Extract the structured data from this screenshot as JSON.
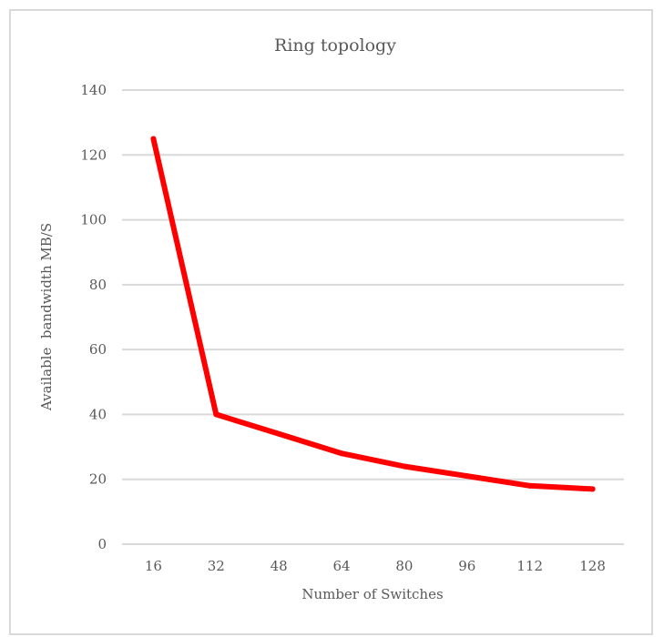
{
  "chart_data": {
    "type": "line",
    "title": "Ring topology",
    "xlabel": "Number of Switches",
    "ylabel": "Available  bandwidth MB/S",
    "categories": [
      "16",
      "32",
      "48",
      "64",
      "80",
      "96",
      "112",
      "128"
    ],
    "series": [
      {
        "values": [
          125,
          40,
          34,
          28,
          24,
          21,
          18,
          17
        ],
        "color": "#ff0000"
      }
    ],
    "ylim": [
      0,
      140
    ],
    "yticks": [
      "0",
      "20",
      "40",
      "60",
      "80",
      "100",
      "120",
      "140"
    ],
    "grid": true,
    "legend": "none"
  }
}
